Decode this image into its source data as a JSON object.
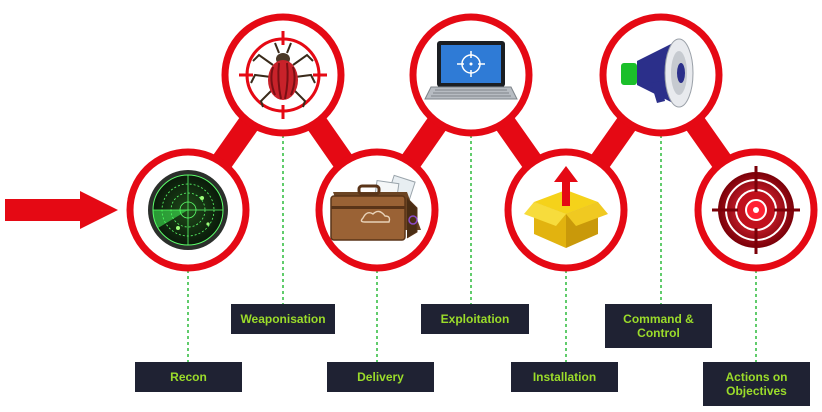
{
  "stages": [
    {
      "id": "recon",
      "label": "Recon",
      "icon": "radar-icon"
    },
    {
      "id": "weaponisation",
      "label": "Weaponisation",
      "icon": "bug-icon"
    },
    {
      "id": "delivery",
      "label": "Delivery",
      "icon": "briefcase-icon"
    },
    {
      "id": "exploitation",
      "label": "Exploitation",
      "icon": "laptop-crosshair-icon"
    },
    {
      "id": "installation",
      "label": "Installation",
      "icon": "box-arrow-icon"
    },
    {
      "id": "command_control",
      "label": "Command & Control",
      "icon": "megaphone-icon"
    },
    {
      "id": "actions",
      "label": "Actions on Objectives",
      "icon": "target-icon"
    }
  ],
  "colors": {
    "chain_red": "#e50914",
    "label_bg": "#1f2233",
    "label_text": "#9bdc2a",
    "connector_green": "#2dbb3c"
  }
}
